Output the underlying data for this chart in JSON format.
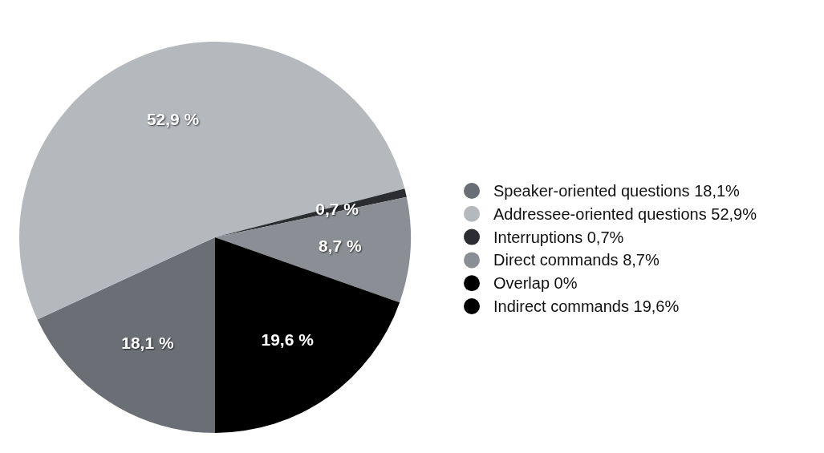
{
  "chart_data": {
    "type": "pie",
    "categories": [
      "Speaker-oriented questions 18,1%",
      "Addressee-oriented questions 52,9%",
      "Interruptions 0,7%",
      "Direct commands 8,7%",
      "Overlap 0%",
      "Indirect commands 19,6%"
    ],
    "values": [
      18.1,
      52.9,
      0.7,
      8.7,
      0,
      19.6
    ],
    "colors": [
      "#6b6e75",
      "#b5b8bd",
      "#2b2d30",
      "#8b8e94",
      "#000000",
      "#000000"
    ],
    "value_labels": [
      "18,1 %",
      "52,9 %",
      "0,7 %",
      "8,7 %",
      null,
      "19,6 %"
    ],
    "legend": "right"
  }
}
